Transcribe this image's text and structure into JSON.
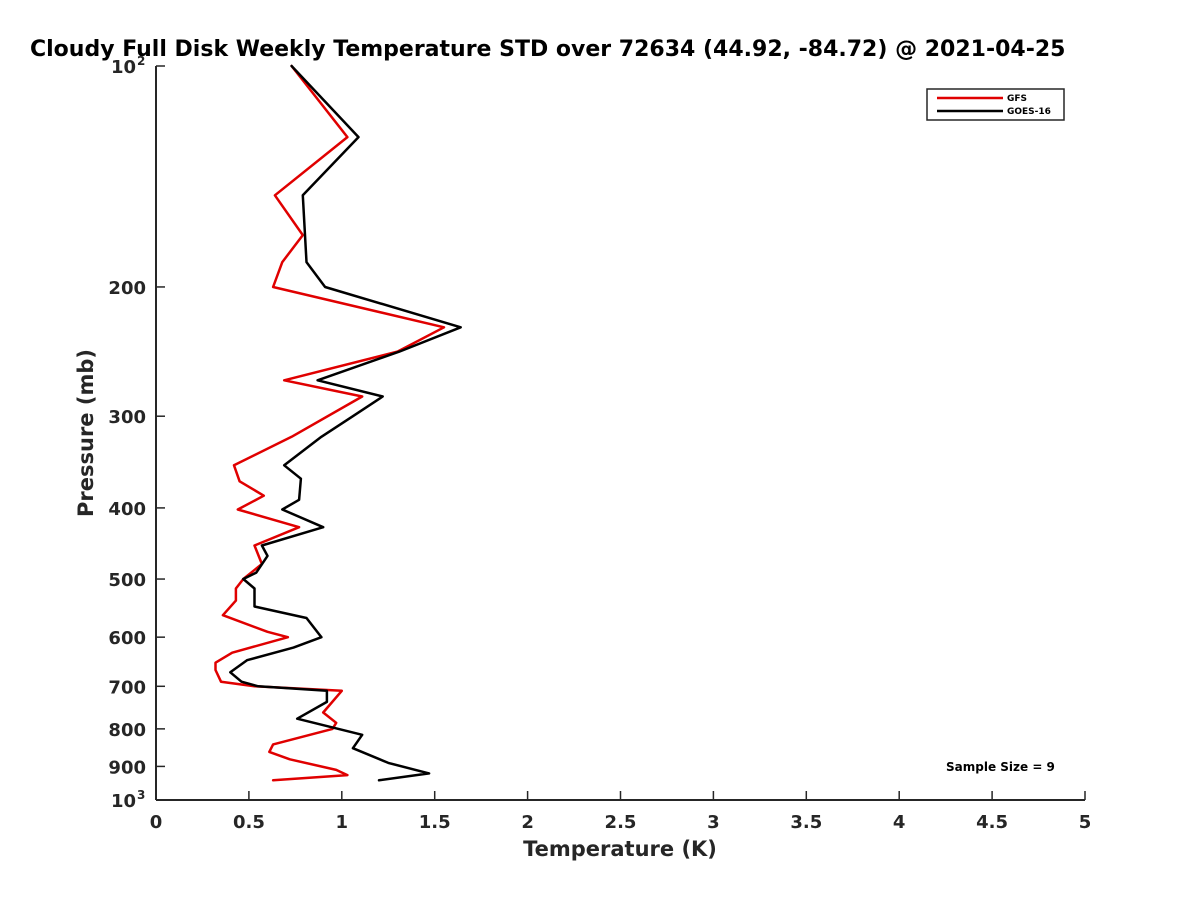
{
  "chart_data": {
    "type": "line",
    "title": "Cloudy Full Disk Weekly Temperature STD over 72634 (44.92, -84.72) @ 2021-04-25",
    "xlabel": "Temperature (K)",
    "ylabel": "Pressure (mb)",
    "xlim": [
      0,
      5
    ],
    "ylim": [
      100,
      1000
    ],
    "y_scale": "log",
    "y_reversed": true,
    "x_ticks": [
      {
        "value": 0,
        "label": "0"
      },
      {
        "value": 0.5,
        "label": "0.5"
      },
      {
        "value": 1,
        "label": "1"
      },
      {
        "value": 1.5,
        "label": "1.5"
      },
      {
        "value": 2,
        "label": "2"
      },
      {
        "value": 2.5,
        "label": "2.5"
      },
      {
        "value": 3,
        "label": "3"
      },
      {
        "value": 3.5,
        "label": "3.5"
      },
      {
        "value": 4,
        "label": "4"
      },
      {
        "value": 4.5,
        "label": "4.5"
      },
      {
        "value": 5,
        "label": "5"
      }
    ],
    "y_ticks": [
      {
        "value": 100,
        "label": "10",
        "exp": "2"
      },
      {
        "value": 200,
        "label": "200"
      },
      {
        "value": 300,
        "label": "300"
      },
      {
        "value": 400,
        "label": "400"
      },
      {
        "value": 500,
        "label": "500"
      },
      {
        "value": 600,
        "label": "600"
      },
      {
        "value": 700,
        "label": "700"
      },
      {
        "value": 800,
        "label": "800"
      },
      {
        "value": 900,
        "label": "900"
      },
      {
        "value": 1000,
        "label": "10",
        "exp": "3"
      }
    ],
    "grid": false,
    "legend_position": "top-right",
    "annotation": "Sample Size = 9",
    "series": [
      {
        "name": "GFS",
        "color": "#e00000",
        "points": [
          [
            0.73,
            100
          ],
          [
            1.03,
            125
          ],
          [
            0.64,
            150
          ],
          [
            0.79,
            170
          ],
          [
            0.68,
            185
          ],
          [
            0.63,
            200
          ],
          [
            1.55,
            227
          ],
          [
            1.3,
            245
          ],
          [
            0.69,
            268
          ],
          [
            1.11,
            282
          ],
          [
            0.73,
            320
          ],
          [
            0.42,
            350
          ],
          [
            0.45,
            368
          ],
          [
            0.58,
            385
          ],
          [
            0.44,
            402
          ],
          [
            0.77,
            425
          ],
          [
            0.53,
            450
          ],
          [
            0.57,
            477
          ],
          [
            0.47,
            500
          ],
          [
            0.43,
            515
          ],
          [
            0.43,
            535
          ],
          [
            0.36,
            560
          ],
          [
            0.6,
            590
          ],
          [
            0.71,
            600
          ],
          [
            0.41,
            630
          ],
          [
            0.32,
            650
          ],
          [
            0.32,
            665
          ],
          [
            0.35,
            690
          ],
          [
            0.53,
            700
          ],
          [
            1.0,
            710
          ],
          [
            0.9,
            760
          ],
          [
            0.97,
            785
          ],
          [
            0.95,
            800
          ],
          [
            0.63,
            840
          ],
          [
            0.61,
            860
          ],
          [
            0.72,
            880
          ],
          [
            0.97,
            910
          ],
          [
            1.03,
            925
          ],
          [
            0.63,
            940
          ]
        ]
      },
      {
        "name": "GOES-16",
        "color": "#000000",
        "points": [
          [
            0.73,
            100
          ],
          [
            1.09,
            125
          ],
          [
            0.79,
            150
          ],
          [
            0.81,
            185
          ],
          [
            0.91,
            200
          ],
          [
            1.64,
            227
          ],
          [
            1.31,
            245
          ],
          [
            0.87,
            268
          ],
          [
            1.22,
            282
          ],
          [
            1.06,
            300
          ],
          [
            0.89,
            320
          ],
          [
            0.69,
            350
          ],
          [
            0.78,
            365
          ],
          [
            0.77,
            390
          ],
          [
            0.68,
            402
          ],
          [
            0.9,
            425
          ],
          [
            0.57,
            450
          ],
          [
            0.6,
            465
          ],
          [
            0.54,
            490
          ],
          [
            0.47,
            500
          ],
          [
            0.53,
            515
          ],
          [
            0.53,
            545
          ],
          [
            0.81,
            565
          ],
          [
            0.89,
            600
          ],
          [
            0.74,
            620
          ],
          [
            0.49,
            645
          ],
          [
            0.4,
            670
          ],
          [
            0.46,
            690
          ],
          [
            0.55,
            700
          ],
          [
            0.92,
            710
          ],
          [
            0.92,
            735
          ],
          [
            0.76,
            775
          ],
          [
            1.11,
            815
          ],
          [
            1.06,
            850
          ],
          [
            1.25,
            890
          ],
          [
            1.47,
            920
          ],
          [
            1.2,
            940
          ]
        ]
      }
    ]
  }
}
